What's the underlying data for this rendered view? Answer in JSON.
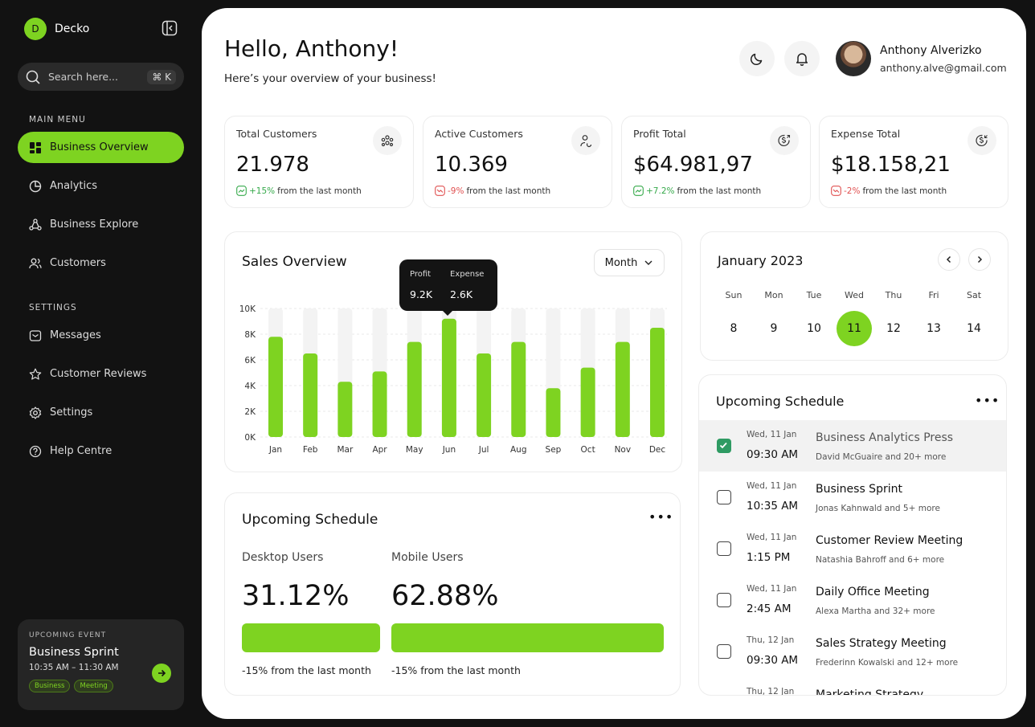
{
  "sidebar": {
    "logo_letter": "D",
    "brand": "Decko",
    "search": {
      "placeholder": "Search here...",
      "shortcut": "⌘ K"
    },
    "main_menu_label": "MAIN MENU",
    "main_items": [
      {
        "label": "Business Overview",
        "icon": "grid-icon",
        "active": true
      },
      {
        "label": "Analytics",
        "icon": "pie-chart-icon"
      },
      {
        "label": "Business Explore",
        "icon": "network-icon"
      },
      {
        "label": "Customers",
        "icon": "users-icon"
      }
    ],
    "settings_label": "SETTINGS",
    "settings_items": [
      {
        "label": "Messages",
        "icon": "message-icon"
      },
      {
        "label": "Customer Reviews",
        "icon": "star-icon"
      },
      {
        "label": "Settings",
        "icon": "gear-icon"
      },
      {
        "label": "Help Centre",
        "icon": "help-icon"
      }
    ],
    "event": {
      "label": "UPCOMING EVENT",
      "title": "Business Sprint",
      "time": "10:35 AM – 11:30 AM",
      "tags": [
        "Business",
        "Meeting"
      ]
    }
  },
  "header": {
    "greeting": "Hello, Anthony!",
    "subtitle": "Here’s your overview of your business!",
    "user": {
      "name": "Anthony Alverizko",
      "email": "anthony.alve@gmail.com"
    }
  },
  "stats": [
    {
      "label": "Total Customers",
      "value": "21.978",
      "change": "+15%",
      "direction": "up",
      "suffix": "from the last month",
      "icon": "users-group-icon"
    },
    {
      "label": "Active Customers",
      "value": "10.369",
      "change": "-9%",
      "direction": "down",
      "suffix": "from the last month",
      "icon": "user-refresh-icon"
    },
    {
      "label": "Profit Total",
      "value": "$64.981,97",
      "change": "+7.2%",
      "direction": "up",
      "suffix": "from the last month",
      "icon": "dollar-up-icon"
    },
    {
      "label": "Expense Total",
      "value": "$18.158,21",
      "change": "-2%",
      "direction": "down",
      "suffix": "from the last month",
      "icon": "dollar-icon"
    }
  ],
  "sales": {
    "title": "Sales Overview",
    "period": "Month",
    "tooltip": {
      "profit_label": "Profit",
      "profit_value": "9.2K",
      "expense_label": "Expense",
      "expense_value": "2.6K"
    }
  },
  "chart_data": {
    "type": "bar",
    "title": "Sales Overview",
    "categories": [
      "Jan",
      "Feb",
      "Mar",
      "Apr",
      "May",
      "Jun",
      "Jul",
      "Aug",
      "Sep",
      "Oct",
      "Nov",
      "Dec"
    ],
    "values": [
      7.8,
      6.5,
      4.3,
      5.1,
      7.4,
      9.2,
      6.5,
      7.4,
      3.8,
      5.4,
      7.4,
      8.5
    ],
    "y_ticks": [
      "0K",
      "2K",
      "4K",
      "6K",
      "8K",
      "10K"
    ],
    "ylim": [
      0,
      10
    ],
    "highlighted": "Jun",
    "colors": {
      "bar": "#7ed321",
      "track": "#f3f3f3"
    }
  },
  "users": {
    "title": "Upcoming Schedule",
    "desktop": {
      "label": "Desktop Users",
      "value": "31.12%",
      "change": "-15% from the last month"
    },
    "mobile": {
      "label": "Mobile Users",
      "value": "62.88%",
      "change": "-15% from the last month"
    }
  },
  "calendar": {
    "month": "January 2023",
    "days": [
      {
        "dow": "Sun",
        "num": "8"
      },
      {
        "dow": "Mon",
        "num": "9"
      },
      {
        "dow": "Tue",
        "num": "10"
      },
      {
        "dow": "Wed",
        "num": "11",
        "selected": true
      },
      {
        "dow": "Thu",
        "num": "12"
      },
      {
        "dow": "Fri",
        "num": "13"
      },
      {
        "dow": "Sat",
        "num": "14"
      }
    ]
  },
  "schedule": {
    "title": "Upcoming Schedule",
    "items": [
      {
        "date": "Wed, 11 Jan",
        "time": "09:30 AM",
        "name": "Business Analytics Press",
        "people": "David McGuaire and 20+ more",
        "done": true
      },
      {
        "date": "Wed, 11 Jan",
        "time": "10:35 AM",
        "name": "Business Sprint",
        "people": "Jonas Kahnwald and 5+ more",
        "done": false
      },
      {
        "date": "Wed, 11 Jan",
        "time": "1:15 PM",
        "name": "Customer Review Meeting",
        "people": "Natashia Bahroff and 6+ more",
        "done": false
      },
      {
        "date": "Wed, 11 Jan",
        "time": "2:45 AM",
        "name": "Daily Office Meeting",
        "people": "Alexa Martha and 32+ more",
        "done": false
      },
      {
        "date": "Thu, 12 Jan",
        "time": "09:30 AM",
        "name": "Sales Strategy Meeting",
        "people": "Frederinn Kowalski and 12+ more",
        "done": false
      },
      {
        "date": "Thu, 12 Jan",
        "time": "",
        "name": "Marketing Strategy",
        "people": "",
        "done": false
      }
    ]
  },
  "colors": {
    "accent": "#7ed321",
    "dark": "#121212",
    "up": "#35a94a",
    "down": "#e05050"
  }
}
